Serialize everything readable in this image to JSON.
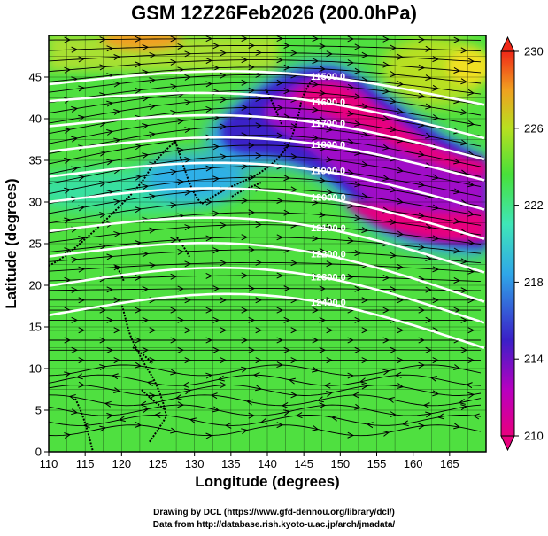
{
  "title": "GSM 12Z26Feb2026 (200.0hPa)",
  "x_axis": {
    "label": "Longitude (degrees)",
    "ticks": [
      "110",
      "115",
      "120",
      "125",
      "130",
      "135",
      "140",
      "145",
      "150",
      "155",
      "160",
      "165"
    ],
    "range": [
      110,
      170
    ]
  },
  "y_axis": {
    "label": "Latitude  (degrees)",
    "ticks": [
      "0",
      "5",
      "10",
      "15",
      "20",
      "25",
      "30",
      "35",
      "40",
      "45"
    ],
    "range": [
      0,
      50
    ]
  },
  "colorbar": {
    "labels": [
      "230",
      "226",
      "222",
      "218",
      "214",
      "210"
    ],
    "range": [
      210,
      230
    ],
    "colors": [
      "#e8007e",
      "#3a20c8",
      "#2fa6e8",
      "#3fe6b8",
      "#48e03a",
      "#b8e020",
      "#f0a020",
      "#f02818"
    ]
  },
  "contours": [
    {
      "label": "11500.0",
      "lat_start": 44.5,
      "lat_end": 42.0
    },
    {
      "label": "11600.0",
      "lat_start": 42.5,
      "lat_end": 38.0
    },
    {
      "label": "11700.0",
      "lat_start": 39.5,
      "lat_end": 35.5
    },
    {
      "label": "11800.0",
      "lat_start": 36.5,
      "lat_end": 33.0
    },
    {
      "label": "11900.0",
      "lat_start": 33.5,
      "lat_end": 29.5
    },
    {
      "label": "12000.0",
      "lat_start": 30.5,
      "lat_end": 26.0
    },
    {
      "label": "12100.0",
      "lat_start": 27.0,
      "lat_end": 22.0
    },
    {
      "label": "12200.0",
      "lat_start": 24.0,
      "lat_end": 18.5
    },
    {
      "label": "12300.0",
      "lat_start": 20.5,
      "lat_end": 16.0
    },
    {
      "label": "12400.0",
      "lat_start": 17.0,
      "lat_end": 13.0
    }
  ],
  "credits": {
    "line1": "Drawing by DCL (https://www.gfd-dennou.org/library/dcl/)",
    "line2": "Data from http://database.rish.kyoto-u.ac.jp/arch/jmadata/"
  }
}
